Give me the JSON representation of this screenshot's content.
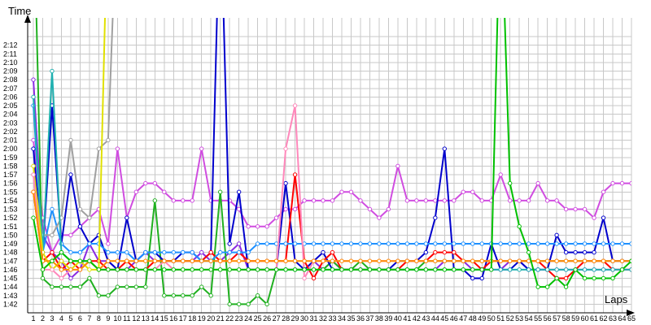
{
  "chart_data": {
    "type": "line",
    "xlabel": "Laps",
    "ylabel": "Time",
    "x_ticks": [
      "1",
      "2",
      "3",
      "4",
      "5",
      "6",
      "7",
      "8",
      "9",
      "10",
      "11",
      "12",
      "13",
      "14",
      "15",
      "16",
      "17",
      "18",
      "19",
      "20",
      "21",
      "22",
      "23",
      "24",
      "25",
      "26",
      "27",
      "28",
      "29",
      "30",
      "31",
      "32",
      "33",
      "34",
      "35",
      "36",
      "37",
      "38",
      "39",
      "40",
      "41",
      "42",
      "43",
      "44",
      "45",
      "46",
      "47",
      "48",
      "49",
      "50",
      "51",
      "52",
      "53",
      "54",
      "55",
      "56",
      "57",
      "58",
      "59",
      "60",
      "61",
      "62",
      "63",
      "64",
      "65"
    ],
    "y_ticks": [
      "1:42",
      "1:43",
      "1:44",
      "1:45",
      "1:46",
      "1:47",
      "1:48",
      "1:49",
      "1:50",
      "1:51",
      "1:52",
      "1:53",
      "1:54",
      "1:55",
      "1:56",
      "1:57",
      "1:58",
      "1:59",
      "2:00",
      "2:01",
      "2:02",
      "2:03",
      "2:04",
      "2:05",
      "2:06",
      "2:07",
      "2:08",
      "2:09",
      "2:10",
      "2:11",
      "2:12"
    ],
    "ylim_seconds": [
      101,
      133
    ],
    "grid": true,
    "series": [
      {
        "color": "#8a2be2",
        "values": [
          128,
          110,
          108,
          107,
          105,
          106,
          109,
          107,
          107,
          106,
          106,
          107,
          108,
          107,
          107,
          107,
          107,
          107,
          108,
          107,
          107,
          108,
          109,
          106,
          106,
          106,
          106,
          106,
          106,
          106,
          107,
          106,
          107,
          106,
          106,
          106,
          106,
          106,
          106,
          106,
          106,
          106,
          106,
          106,
          107,
          107,
          107,
          106,
          106,
          106,
          106,
          107,
          107,
          106,
          106,
          106,
          106,
          106,
          106,
          106,
          106,
          106,
          106,
          106,
          106
        ]
      },
      {
        "color": "#d04de0",
        "values": [
          121,
          112,
          108,
          110,
          110,
          111,
          112,
          113,
          109,
          120,
          112,
          115,
          116,
          116,
          115,
          114,
          114,
          114,
          120,
          114,
          114,
          114,
          113,
          111,
          111,
          111,
          112,
          113,
          113,
          114,
          114,
          114,
          114,
          115,
          115,
          114,
          113,
          112,
          113,
          118,
          114,
          114,
          114,
          114,
          114,
          114,
          115,
          115,
          114,
          114,
          117,
          114,
          114,
          114,
          116,
          114,
          114,
          113,
          113,
          113,
          112,
          115,
          116,
          116,
          116
        ]
      },
      {
        "color": "#20b020",
        "values": [
          150,
          105,
          104,
          104,
          104,
          104,
          105,
          103,
          103,
          104,
          104,
          104,
          104,
          114,
          103,
          103,
          103,
          103,
          104,
          103,
          115,
          102,
          102,
          102,
          103,
          102,
          106,
          106,
          106,
          106,
          106,
          106,
          107,
          106,
          106,
          107,
          106,
          106,
          106,
          106,
          106,
          106,
          107,
          107,
          107,
          107,
          107,
          107,
          107,
          107,
          107,
          107,
          107,
          107,
          107,
          107,
          107,
          107,
          107,
          107,
          107,
          107,
          107,
          107,
          107
        ]
      },
      {
        "color": "#0000cc",
        "values": [
          120,
          108,
          125,
          109,
          117,
          111,
          109,
          110,
          107,
          106,
          112,
          107,
          108,
          108,
          107,
          107,
          108,
          108,
          107,
          108,
          150,
          109,
          115,
          106,
          106,
          106,
          106,
          116,
          107,
          106,
          107,
          108,
          106,
          106,
          106,
          106,
          106,
          106,
          106,
          107,
          107,
          107,
          108,
          112,
          120,
          106,
          106,
          105,
          105,
          109,
          106,
          106,
          107,
          106,
          106,
          106,
          110,
          108,
          108,
          108,
          108,
          112,
          107,
          107,
          107
        ]
      },
      {
        "color": "#ff0000",
        "values": [
          115,
          107,
          108,
          106,
          107,
          106,
          107,
          107,
          106,
          106,
          107,
          106,
          106,
          107,
          107,
          107,
          107,
          107,
          107,
          108,
          107,
          107,
          108,
          107,
          107,
          107,
          107,
          107,
          117,
          107,
          105,
          107,
          108,
          106,
          106,
          106,
          106,
          106,
          106,
          106,
          107,
          107,
          107,
          108,
          108,
          108,
          107,
          107,
          106,
          107,
          107,
          107,
          107,
          107,
          107,
          106,
          105,
          105,
          106,
          107,
          107,
          107,
          106,
          106,
          106
        ]
      },
      {
        "color": "#1e90ff",
        "values": [
          125,
          108,
          113,
          109,
          108,
          108,
          109,
          109,
          108,
          108,
          108,
          107,
          108,
          108,
          108,
          108,
          108,
          108,
          107,
          107,
          108,
          108,
          108,
          108,
          109,
          109,
          109,
          109,
          109,
          109,
          109,
          109,
          109,
          109,
          109,
          109,
          109,
          109,
          109,
          109,
          109,
          109,
          109,
          109,
          109,
          109,
          109,
          109,
          109,
          109,
          109,
          109,
          109,
          109,
          109,
          109,
          109,
          109,
          109,
          109,
          109,
          109,
          109,
          109,
          109
        ]
      },
      {
        "color": "#a0a0a0",
        "values": [
          117,
          110,
          110,
          112,
          121,
          113,
          112,
          120,
          121,
          150,
          150,
          150,
          150,
          150,
          150,
          150,
          150,
          150,
          150,
          150,
          150,
          150,
          150,
          150,
          150,
          150,
          150,
          150,
          150,
          150,
          150,
          150,
          150,
          150,
          150,
          150,
          150,
          150,
          150,
          150,
          150,
          150,
          150,
          150,
          150,
          150,
          150,
          150,
          150,
          150,
          150,
          150,
          150,
          150,
          150,
          150,
          150,
          150,
          150,
          150,
          150,
          150,
          150,
          150,
          150
        ]
      },
      {
        "color": "#20b0b0",
        "values": [
          126,
          108,
          129,
          108,
          107,
          107,
          107,
          106,
          106,
          106,
          106,
          106,
          106,
          106,
          106,
          106,
          106,
          106,
          106,
          106,
          106,
          106,
          106,
          106,
          106,
          106,
          106,
          106,
          106,
          106,
          106,
          106,
          106,
          106,
          106,
          106,
          106,
          106,
          106,
          106,
          106,
          106,
          106,
          106,
          106,
          106,
          106,
          106,
          106,
          106,
          106,
          106,
          106,
          106,
          106,
          106,
          106,
          106,
          106,
          106,
          106,
          106,
          106,
          106,
          106
        ]
      },
      {
        "color": "#e0e000",
        "values": [
          118,
          108,
          106,
          107,
          106,
          107,
          106,
          106,
          150,
          150,
          150,
          150,
          150,
          150,
          150,
          150,
          150,
          150,
          150,
          150,
          150,
          150,
          150,
          150,
          150,
          150,
          150,
          150,
          150,
          150,
          150,
          150,
          150,
          150,
          150,
          150,
          150,
          150,
          150,
          150,
          150,
          150,
          150,
          150,
          150,
          150,
          150,
          150,
          150,
          150,
          150,
          150,
          150,
          150,
          150,
          150,
          150,
          150,
          150,
          150,
          150,
          150,
          150,
          150,
          150
        ]
      },
      {
        "color": "#ff88bb",
        "values": [
          117,
          106,
          106,
          105,
          106,
          106,
          107,
          106,
          106,
          106,
          106,
          106,
          106,
          106,
          107,
          106,
          106,
          106,
          106,
          106,
          106,
          106,
          106,
          106,
          106,
          106,
          106,
          120,
          125,
          105,
          107,
          107,
          107,
          107,
          107,
          107,
          107,
          107,
          107,
          107,
          107,
          107,
          107,
          107,
          107,
          107,
          107,
          107,
          107,
          107,
          107,
          107,
          107,
          107,
          107,
          107,
          107,
          107,
          107,
          107,
          107,
          107,
          107,
          107,
          107
        ]
      },
      {
        "color": "#ff8c00",
        "values": [
          115,
          107,
          107,
          106,
          106,
          106,
          107,
          106,
          107,
          107,
          107,
          107,
          107,
          107,
          107,
          107,
          107,
          107,
          107,
          107,
          107,
          107,
          107,
          107,
          107,
          107,
          107,
          107,
          107,
          107,
          107,
          107,
          107,
          107,
          107,
          107,
          107,
          107,
          107,
          107,
          107,
          107,
          107,
          107,
          107,
          107,
          107,
          107,
          107,
          107,
          107,
          107,
          107,
          107,
          107,
          107,
          107,
          107,
          107,
          107,
          107,
          107,
          107,
          107,
          107
        ]
      },
      {
        "color": "#00c000",
        "values": [
          112,
          106,
          107,
          108,
          107,
          107,
          107,
          106,
          106,
          106,
          106,
          106,
          106,
          106,
          106,
          106,
          106,
          106,
          106,
          106,
          106,
          106,
          106,
          106,
          106,
          106,
          106,
          106,
          106,
          106,
          106,
          106,
          106,
          106,
          106,
          106,
          106,
          106,
          106,
          106,
          106,
          106,
          106,
          106,
          106,
          106,
          106,
          106,
          106,
          106,
          150,
          116,
          111,
          108,
          104,
          104,
          105,
          104,
          106,
          105,
          105,
          105,
          105,
          106,
          107
        ]
      }
    ]
  }
}
